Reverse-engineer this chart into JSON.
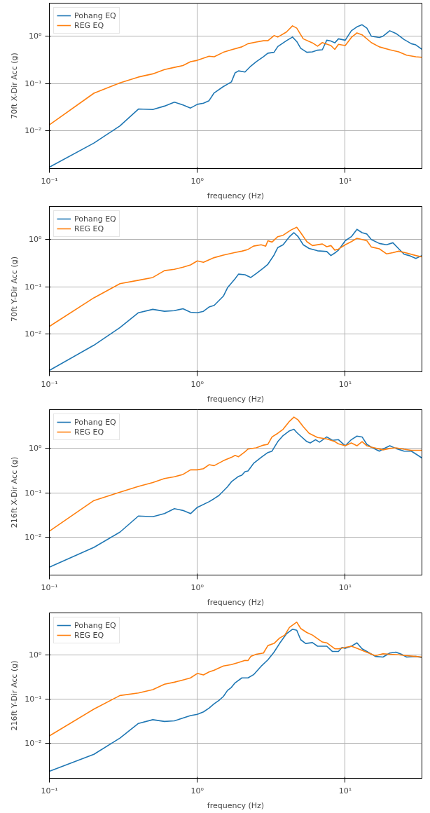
{
  "chart_data": [
    {
      "type": "line",
      "xlabel": "frequency (Hz)",
      "ylabel": "70ft X-Dir Acc (g)",
      "log": "xy",
      "grid": true,
      "legend": "top left",
      "xlim": [
        0.1,
        33
      ],
      "ylim": [
        0.00155,
        5.1
      ],
      "xticks": [
        {
          "value": 0.1,
          "label": "10⁻¹"
        },
        {
          "value": 1,
          "label": "10⁰"
        },
        {
          "value": 10,
          "label": "10¹"
        }
      ],
      "yticks": [
        {
          "value": 0.01,
          "label": "10⁻²"
        },
        {
          "value": 0.1,
          "label": "10⁻¹"
        },
        {
          "value": 1,
          "label": "10⁰"
        }
      ],
      "series": [
        {
          "name": "Pohang EQ",
          "color": "#1f77b4",
          "x": [
            0.1,
            0.2,
            0.3,
            0.4,
            0.5,
            0.6,
            0.7,
            0.8,
            0.9,
            1.0,
            1.1,
            1.2,
            1.3,
            1.5,
            1.7,
            1.8,
            1.9,
            2.1,
            2.3,
            2.5,
            2.8,
            3.0,
            3.3,
            3.5,
            4.0,
            4.4,
            4.7,
            5.0,
            5.5,
            6.0,
            6.5,
            7.0,
            7.5,
            8.0,
            8.5,
            9.0,
            10,
            11,
            12,
            13,
            14,
            15,
            17,
            18,
            20,
            22,
            25,
            28,
            30,
            33
          ],
          "values": [
            0.00166,
            0.0054,
            0.0125,
            0.0286,
            0.0279,
            0.033,
            0.04,
            0.035,
            0.03,
            0.036,
            0.038,
            0.043,
            0.063,
            0.086,
            0.108,
            0.168,
            0.185,
            0.175,
            0.234,
            0.29,
            0.37,
            0.44,
            0.46,
            0.61,
            0.81,
            0.97,
            0.78,
            0.56,
            0.46,
            0.47,
            0.51,
            0.52,
            0.83,
            0.8,
            0.73,
            0.89,
            0.83,
            1.32,
            1.6,
            1.77,
            1.5,
            1.01,
            0.95,
            1.01,
            1.32,
            1.16,
            0.86,
            0.7,
            0.66,
            0.53
          ]
        },
        {
          "name": "REG EQ",
          "color": "#ff7f0e",
          "x": [
            0.1,
            0.2,
            0.3,
            0.4,
            0.5,
            0.6,
            0.7,
            0.8,
            0.9,
            1.0,
            1.2,
            1.3,
            1.5,
            1.7,
            2.0,
            2.2,
            2.5,
            2.8,
            3.0,
            3.3,
            3.5,
            4.0,
            4.4,
            4.7,
            5.2,
            6.0,
            6.5,
            7.0,
            8.0,
            8.5,
            9.0,
            10,
            11,
            12,
            13,
            15,
            17,
            20,
            23,
            26,
            30,
            33
          ],
          "values": [
            0.0132,
            0.062,
            0.103,
            0.137,
            0.16,
            0.197,
            0.22,
            0.24,
            0.29,
            0.31,
            0.38,
            0.37,
            0.46,
            0.52,
            0.6,
            0.7,
            0.76,
            0.81,
            0.81,
            1.04,
            0.97,
            1.24,
            1.68,
            1.5,
            0.89,
            0.73,
            0.62,
            0.74,
            0.64,
            0.53,
            0.68,
            0.64,
            0.95,
            1.19,
            1.08,
            0.74,
            0.6,
            0.52,
            0.47,
            0.4,
            0.37,
            0.36
          ]
        }
      ]
    },
    {
      "type": "line",
      "xlabel": "frequency (Hz)",
      "ylabel": "70ft Y-Dir Acc (g)",
      "log": "xy",
      "grid": true,
      "legend": "top left",
      "xlim": [
        0.1,
        33
      ],
      "ylim": [
        0.00155,
        5.1
      ],
      "xticks": [
        {
          "value": 0.1,
          "label": "10⁻¹"
        },
        {
          "value": 1,
          "label": "10⁰"
        },
        {
          "value": 10,
          "label": "10¹"
        }
      ],
      "yticks": [
        {
          "value": 0.01,
          "label": "10⁻²"
        },
        {
          "value": 0.1,
          "label": "10⁻¹"
        },
        {
          "value": 1,
          "label": "10⁰"
        }
      ],
      "series": [
        {
          "name": "Pohang EQ",
          "color": "#1f77b4",
          "x": [
            0.1,
            0.2,
            0.3,
            0.4,
            0.5,
            0.6,
            0.7,
            0.8,
            0.9,
            1.0,
            1.1,
            1.2,
            1.3,
            1.5,
            1.6,
            1.8,
            1.9,
            2.1,
            2.3,
            2.5,
            2.8,
            3.0,
            3.3,
            3.5,
            3.8,
            4.2,
            4.5,
            4.8,
            5.2,
            5.7,
            6.5,
            7.5,
            8.0,
            8.5,
            9.0,
            10,
            11,
            12,
            13,
            14,
            15,
            17,
            19,
            21,
            23,
            25,
            27,
            30,
            33
          ],
          "values": [
            0.00166,
            0.0057,
            0.0135,
            0.028,
            0.033,
            0.03,
            0.031,
            0.034,
            0.0286,
            0.0279,
            0.03,
            0.037,
            0.04,
            0.063,
            0.095,
            0.147,
            0.185,
            0.18,
            0.157,
            0.19,
            0.25,
            0.3,
            0.47,
            0.68,
            0.78,
            1.16,
            1.41,
            1.16,
            0.78,
            0.65,
            0.58,
            0.56,
            0.46,
            0.52,
            0.6,
            0.95,
            1.16,
            1.66,
            1.41,
            1.32,
            1.01,
            0.83,
            0.78,
            0.86,
            0.64,
            0.49,
            0.46,
            0.4,
            0.46
          ]
        },
        {
          "name": "REG EQ",
          "color": "#ff7f0e",
          "x": [
            0.1,
            0.2,
            0.3,
            0.4,
            0.5,
            0.6,
            0.7,
            0.8,
            0.9,
            1.0,
            1.1,
            1.3,
            1.5,
            1.8,
            2.0,
            2.2,
            2.4,
            2.7,
            2.9,
            3.0,
            3.2,
            3.5,
            3.8,
            4.3,
            4.7,
            5.0,
            5.5,
            6.0,
            7.0,
            7.5,
            8.0,
            8.5,
            9.0,
            10,
            11,
            12,
            13,
            14,
            15,
            17,
            19,
            21,
            23,
            26,
            30,
            33
          ],
          "values": [
            0.0143,
            0.058,
            0.116,
            0.137,
            0.157,
            0.22,
            0.235,
            0.26,
            0.29,
            0.354,
            0.33,
            0.415,
            0.47,
            0.535,
            0.57,
            0.62,
            0.73,
            0.78,
            0.73,
            0.95,
            0.89,
            1.16,
            1.24,
            1.61,
            1.84,
            1.41,
            0.91,
            0.75,
            0.81,
            0.71,
            0.75,
            0.6,
            0.63,
            0.78,
            0.91,
            1.07,
            1.01,
            0.95,
            0.7,
            0.64,
            0.5,
            0.53,
            0.57,
            0.52,
            0.46,
            0.43
          ]
        }
      ]
    },
    {
      "type": "line",
      "xlabel": "frequency (Hz)",
      "ylabel": "216ft X-Dir Acc (g)",
      "log": "xy",
      "grid": true,
      "legend": "top left",
      "xlim": [
        0.1,
        33
      ],
      "ylim": [
        0.0014,
        7.5
      ],
      "xticks": [
        {
          "value": 0.1,
          "label": "10⁻¹"
        },
        {
          "value": 1,
          "label": "10⁰"
        },
        {
          "value": 10,
          "label": "10¹"
        }
      ],
      "yticks": [
        {
          "value": 0.01,
          "label": "10⁻²"
        },
        {
          "value": 0.1,
          "label": "10⁻¹"
        },
        {
          "value": 1,
          "label": "10⁰"
        }
      ],
      "series": [
        {
          "name": "Pohang EQ",
          "color": "#1f77b4",
          "x": [
            0.1,
            0.2,
            0.3,
            0.4,
            0.5,
            0.6,
            0.7,
            0.8,
            0.9,
            1.0,
            1.2,
            1.3,
            1.4,
            1.6,
            1.7,
            1.9,
            2.0,
            2.1,
            2.2,
            2.4,
            2.7,
            3.0,
            3.2,
            3.5,
            3.8,
            4.2,
            4.5,
            4.7,
            5.0,
            5.5,
            5.8,
            6.3,
            6.7,
            7.5,
            8.2,
            9.0,
            10,
            11,
            12,
            13,
            14,
            15,
            17,
            18,
            20,
            22,
            25,
            28,
            30,
            33
          ],
          "values": [
            0.0021,
            0.0059,
            0.013,
            0.03,
            0.029,
            0.034,
            0.044,
            0.04,
            0.034,
            0.047,
            0.063,
            0.074,
            0.087,
            0.137,
            0.177,
            0.235,
            0.25,
            0.3,
            0.31,
            0.46,
            0.63,
            0.81,
            0.87,
            1.43,
            1.95,
            2.5,
            2.7,
            2.3,
            1.9,
            1.43,
            1.33,
            1.58,
            1.39,
            1.82,
            1.53,
            1.58,
            1.15,
            1.58,
            1.9,
            1.82,
            1.24,
            1.07,
            0.87,
            0.97,
            1.15,
            1.0,
            0.87,
            0.87,
            0.75,
            0.61
          ]
        },
        {
          "name": "REG EQ",
          "color": "#ff7f0e",
          "x": [
            0.1,
            0.2,
            0.3,
            0.4,
            0.5,
            0.6,
            0.7,
            0.8,
            0.9,
            1.0,
            1.1,
            1.2,
            1.3,
            1.5,
            1.7,
            1.8,
            1.9,
            2.1,
            2.2,
            2.5,
            2.8,
            3.0,
            3.2,
            3.5,
            3.8,
            4.2,
            4.5,
            4.8,
            5.2,
            5.7,
            6.5,
            7.5,
            8.5,
            9.0,
            10,
            11,
            12,
            13,
            14,
            15,
            18,
            20,
            22,
            25,
            28,
            33
          ],
          "values": [
            0.0137,
            0.067,
            0.103,
            0.14,
            0.17,
            0.21,
            0.23,
            0.26,
            0.33,
            0.33,
            0.35,
            0.43,
            0.41,
            0.53,
            0.63,
            0.7,
            0.65,
            0.84,
            0.97,
            1.03,
            1.19,
            1.24,
            1.82,
            2.2,
            2.7,
            4.1,
            5.1,
            4.4,
            3.1,
            2.2,
            1.77,
            1.64,
            1.43,
            1.27,
            1.15,
            1.33,
            1.15,
            1.43,
            1.15,
            1.07,
            0.93,
            1.0,
            1.03,
            0.96,
            0.91,
            0.91
          ]
        }
      ]
    },
    {
      "type": "line",
      "xlabel": "frequency (Hz)",
      "ylabel": "216ft Y-Dir Acc (g)",
      "log": "xy",
      "grid": true,
      "legend": "top left",
      "xlim": [
        0.1,
        33
      ],
      "ylim": [
        0.0016,
        8.9
      ],
      "xticks": [
        {
          "value": 0.1,
          "label": "10⁻¹"
        },
        {
          "value": 1,
          "label": "10⁰"
        },
        {
          "value": 10,
          "label": "10¹"
        }
      ],
      "yticks": [
        {
          "value": 0.01,
          "label": "10⁻²"
        },
        {
          "value": 0.1,
          "label": "10⁻¹"
        },
        {
          "value": 1,
          "label": "10⁰"
        }
      ],
      "series": [
        {
          "name": "Pohang EQ",
          "color": "#1f77b4",
          "x": [
            0.1,
            0.2,
            0.3,
            0.4,
            0.5,
            0.6,
            0.7,
            0.8,
            0.9,
            1.0,
            1.1,
            1.2,
            1.3,
            1.4,
            1.5,
            1.6,
            1.7,
            1.8,
            2.0,
            2.2,
            2.4,
            2.7,
            3.0,
            3.3,
            3.6,
            4.0,
            4.4,
            4.7,
            5.0,
            5.4,
            6.0,
            6.5,
            7.5,
            8.2,
            9.0,
            9.5,
            10,
            11,
            12,
            13,
            14,
            16,
            18,
            20,
            22,
            24,
            26,
            30,
            33
          ],
          "values": [
            0.0023,
            0.0056,
            0.013,
            0.028,
            0.034,
            0.031,
            0.032,
            0.037,
            0.042,
            0.045,
            0.051,
            0.062,
            0.078,
            0.093,
            0.114,
            0.156,
            0.183,
            0.232,
            0.3,
            0.3,
            0.355,
            0.55,
            0.77,
            1.15,
            1.81,
            2.98,
            3.8,
            3.6,
            2.2,
            1.81,
            1.89,
            1.57,
            1.57,
            1.19,
            1.19,
            1.47,
            1.4,
            1.57,
            1.87,
            1.37,
            1.19,
            0.92,
            0.89,
            1.1,
            1.15,
            1.03,
            0.89,
            0.92,
            0.87
          ]
        },
        {
          "name": "REG EQ",
          "color": "#ff7f0e",
          "x": [
            0.1,
            0.2,
            0.3,
            0.4,
            0.5,
            0.6,
            0.7,
            0.8,
            0.9,
            1.0,
            1.1,
            1.2,
            1.3,
            1.5,
            1.7,
            1.9,
            2.1,
            2.2,
            2.3,
            2.5,
            2.8,
            3.0,
            3.3,
            3.6,
            3.9,
            4.2,
            4.7,
            5.0,
            5.5,
            6.0,
            7.0,
            7.5,
            8.5,
            9.0,
            10,
            11,
            12,
            14,
            16,
            18,
            20,
            23,
            26,
            30,
            33
          ],
          "values": [
            0.0146,
            0.059,
            0.12,
            0.137,
            0.163,
            0.216,
            0.24,
            0.27,
            0.3,
            0.38,
            0.35,
            0.41,
            0.45,
            0.56,
            0.6,
            0.67,
            0.75,
            0.74,
            0.92,
            1.03,
            1.1,
            1.62,
            1.81,
            2.4,
            2.8,
            4.2,
            5.5,
            3.95,
            3.2,
            2.8,
            1.95,
            1.87,
            1.37,
            1.37,
            1.47,
            1.57,
            1.4,
            1.14,
            0.96,
            1.06,
            1.03,
            1.0,
            0.96,
            0.92,
            0.89
          ]
        }
      ]
    }
  ]
}
